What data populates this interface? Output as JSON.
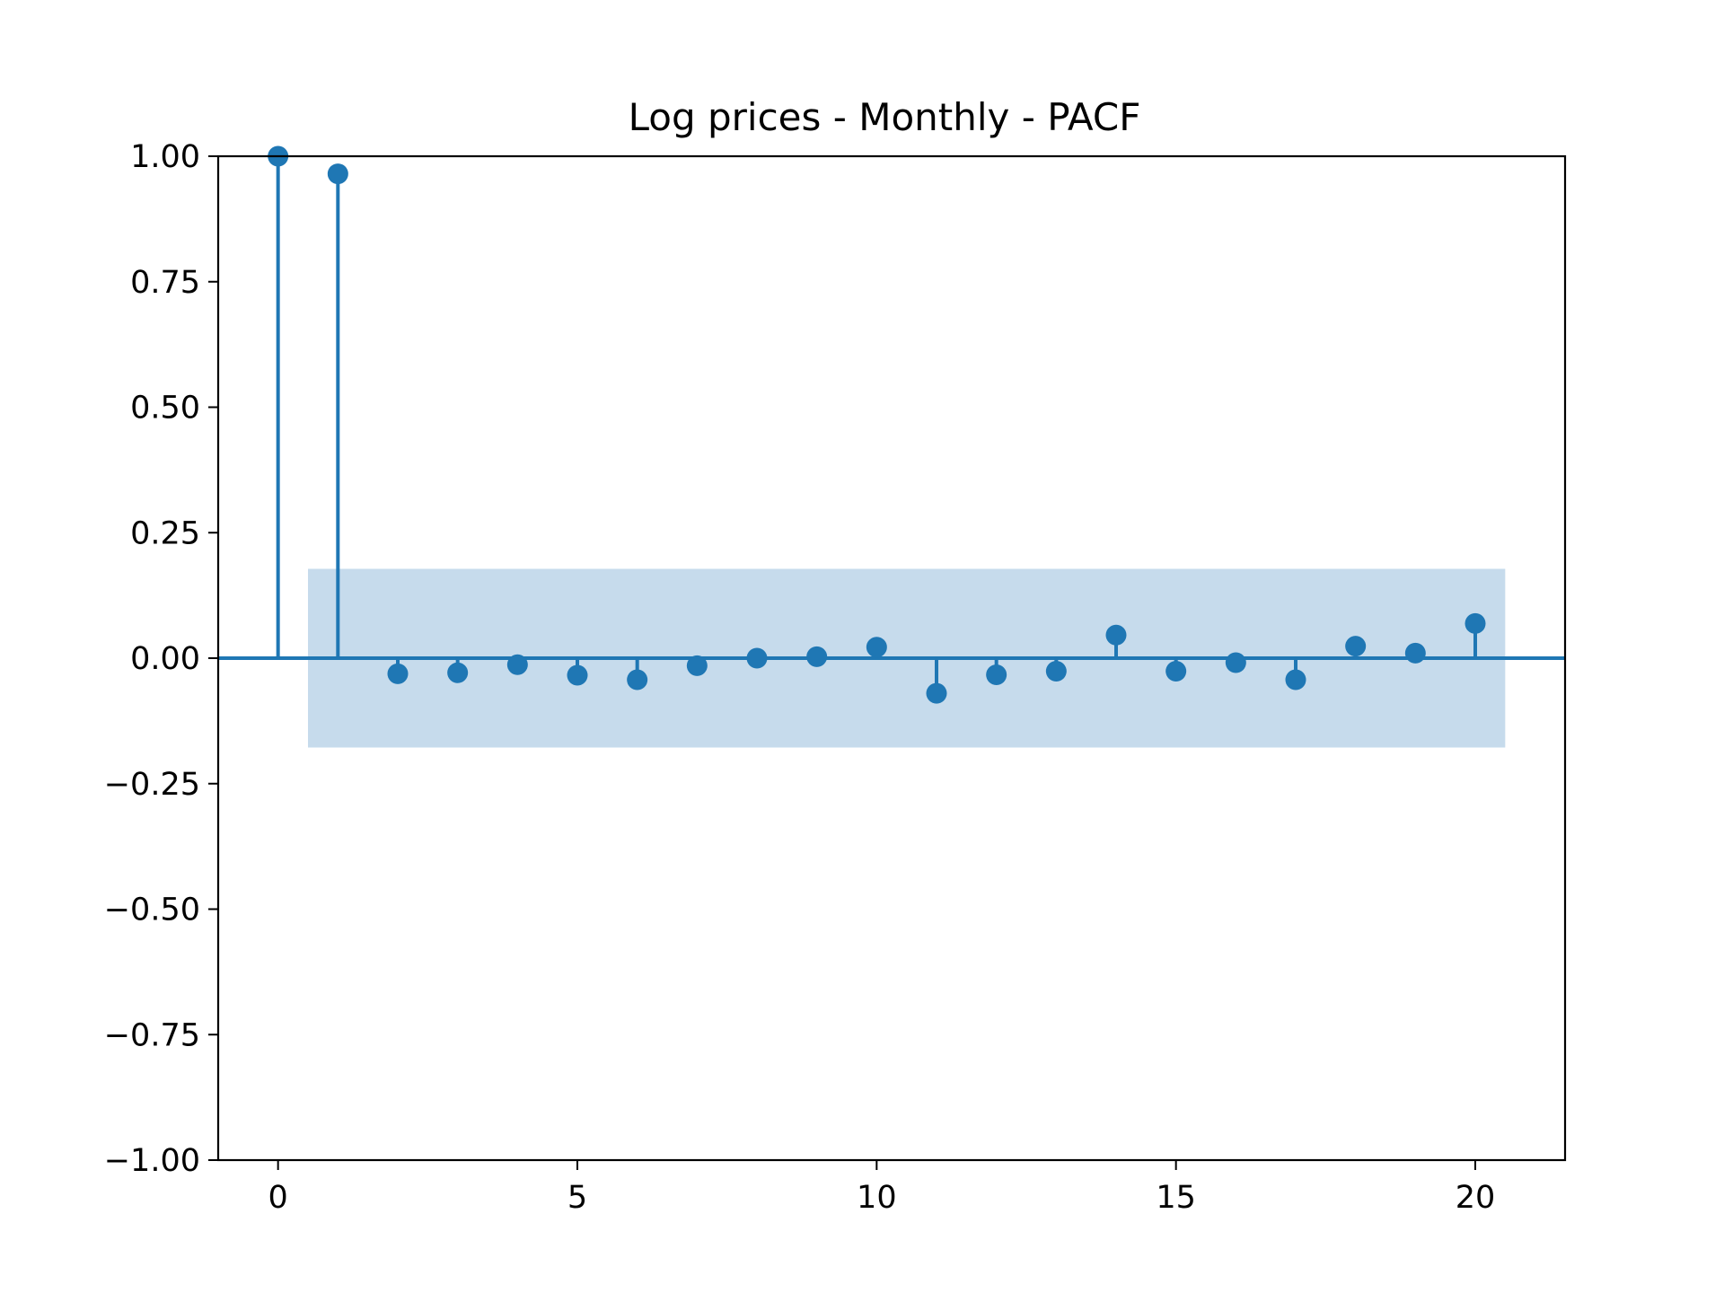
{
  "chart_data": {
    "type": "scatter",
    "subtype": "stem",
    "title": "Log prices - Monthly - PACF",
    "xlabel": "",
    "ylabel": "",
    "x": [
      0,
      1,
      2,
      3,
      4,
      5,
      6,
      7,
      8,
      9,
      10,
      11,
      12,
      13,
      14,
      15,
      16,
      17,
      18,
      19,
      20
    ],
    "y": [
      1.0,
      0.965,
      -0.031,
      -0.029,
      -0.013,
      -0.034,
      -0.043,
      -0.015,
      0.0,
      0.003,
      0.022,
      -0.07,
      -0.033,
      -0.026,
      0.046,
      -0.026,
      -0.009,
      -0.043,
      0.024,
      0.01,
      0.069
    ],
    "confidence_band": {
      "x_range": [
        0.5,
        20.5
      ],
      "y_range": [
        -0.178,
        0.178
      ]
    },
    "xlim": [
      -1.0,
      21.5
    ],
    "ylim": [
      -1.0,
      1.0
    ],
    "xticks": [
      0,
      5,
      10,
      15,
      20
    ],
    "xtick_labels": [
      "0",
      "5",
      "10",
      "15",
      "20"
    ],
    "yticks": [
      1.0,
      0.75,
      0.5,
      0.25,
      0.0,
      -0.25,
      -0.5,
      -0.75,
      -1.0
    ],
    "ytick_labels": [
      "1.00",
      "0.75",
      "0.50",
      "0.25",
      "0.00",
      "−0.25",
      "−0.50",
      "−0.75",
      "−1.00"
    ],
    "grid": false,
    "colors": {
      "series": "#1f77b4",
      "band": "#c6dbec",
      "axes": "#000000"
    }
  }
}
